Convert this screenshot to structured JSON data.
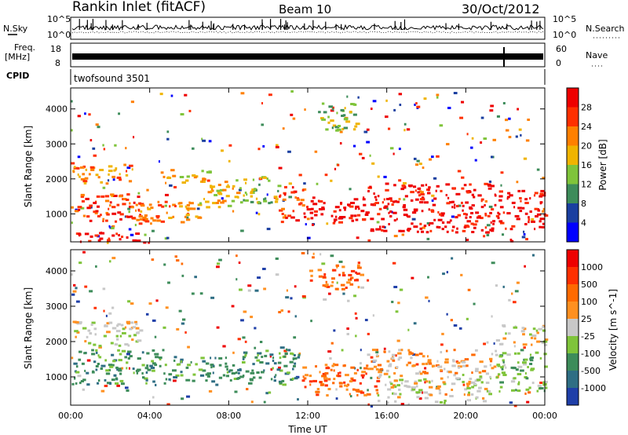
{
  "header": {
    "station_title": "Rankin Inlet (fitACF)",
    "beam": "Beam 10",
    "date": "30/Oct/2012"
  },
  "noise_panel": {
    "left_label": "N.Sky",
    "right_label": "N.Search",
    "tick_top": "10^5",
    "tick_bottom": "10^0",
    "colors": {
      "sky": "#000000",
      "search": "#000000"
    }
  },
  "freq_panel": {
    "left_label_1": "Freq.",
    "left_label_2": "[MHz]",
    "right_label": "Nave",
    "left_tick_top": "18",
    "left_tick_bottom": "8",
    "right_tick_top": "60",
    "right_tick_bottom": "0"
  },
  "cpid_panel": {
    "label": "CPID",
    "program": "twofsound 3501"
  },
  "chart_data": [
    {
      "type": "heatmap",
      "panel": "power",
      "ylabel": "Slant Range [km]",
      "xlabel": "",
      "xlim": [
        0,
        24
      ],
      "ylim": [
        200,
        4600
      ],
      "x_ticks": [
        "00:00",
        "04:00",
        "08:00",
        "12:00",
        "16:00",
        "20:00",
        "00:00"
      ],
      "y_ticks": [
        1000,
        2000,
        3000,
        4000
      ],
      "colorbar": {
        "label": "Power [dB]",
        "ticks": [
          "4",
          "8",
          "12",
          "16",
          "20",
          "24",
          "28"
        ],
        "colors": [
          "#0000ff",
          "#1a3fa0",
          "#3d8c5a",
          "#7fc43a",
          "#f0b400",
          "#ff8000",
          "#ff3000",
          "#ee0000"
        ]
      },
      "regions": [
        {
          "t0": 0.0,
          "t1": 3.5,
          "r0": 800,
          "r1": 1600,
          "level": 6
        },
        {
          "t0": 0.0,
          "t1": 3.0,
          "r0": 1900,
          "r1": 2500,
          "level": 5
        },
        {
          "t0": 3.0,
          "t1": 6.5,
          "r0": 700,
          "r1": 1400,
          "level": 5
        },
        {
          "t0": 4.5,
          "t1": 7.0,
          "r0": 1900,
          "r1": 2300,
          "level": 4
        },
        {
          "t0": 6.5,
          "t1": 8.5,
          "r0": 1200,
          "r1": 2000,
          "level": 4
        },
        {
          "t0": 8.5,
          "t1": 10.5,
          "r0": 1300,
          "r1": 2100,
          "level": 3
        },
        {
          "t0": 10.5,
          "t1": 12.0,
          "r0": 800,
          "r1": 1800,
          "level": 6
        },
        {
          "t0": 12.0,
          "t1": 15.0,
          "r0": 700,
          "r1": 1500,
          "level": 7
        },
        {
          "t0": 15.0,
          "t1": 21.5,
          "r0": 500,
          "r1": 1900,
          "level": 7
        },
        {
          "t0": 21.5,
          "t1": 24.0,
          "r0": 600,
          "r1": 1700,
          "level": 7
        },
        {
          "t0": 12.5,
          "t1": 14.5,
          "r0": 3400,
          "r1": 4200,
          "level": 3
        },
        {
          "t0": 0.0,
          "t1": 4.0,
          "r0": 200,
          "r1": 500,
          "level": 7
        }
      ]
    },
    {
      "type": "heatmap",
      "panel": "velocity",
      "ylabel": "Slant Range [km]",
      "xlabel": "Time UT",
      "xlim": [
        0,
        24
      ],
      "ylim": [
        200,
        4600
      ],
      "x_ticks": [
        "00:00",
        "04:00",
        "08:00",
        "12:00",
        "16:00",
        "20:00",
        "00:00"
      ],
      "y_ticks": [
        1000,
        2000,
        3000,
        4000
      ],
      "colorbar": {
        "label": "Velocity [m s^-1]",
        "ticks": [
          "1000",
          "500",
          "100",
          "25",
          "-25",
          "-100",
          "-500",
          "-1000"
        ],
        "colors": [
          "#1f3fa8",
          "#2f6e84",
          "#3d8c5a",
          "#7fc43a",
          "#c8c8c8",
          "#ff9020",
          "#ff6a00",
          "#ff3000",
          "#ee0000"
        ]
      },
      "regions": [
        {
          "t0": 0.0,
          "t1": 4.5,
          "r0": 800,
          "r1": 1800,
          "level": 2
        },
        {
          "t0": 0.0,
          "t1": 3.5,
          "r0": 1900,
          "r1": 2600,
          "level": 4
        },
        {
          "t0": 4.5,
          "t1": 8.5,
          "r0": 900,
          "r1": 1600,
          "level": 2
        },
        {
          "t0": 8.5,
          "t1": 11.5,
          "r0": 800,
          "r1": 1900,
          "level": 2
        },
        {
          "t0": 11.5,
          "t1": 15.5,
          "r0": 500,
          "r1": 1400,
          "level": 6
        },
        {
          "t0": 15.5,
          "t1": 21.5,
          "r0": 300,
          "r1": 1100,
          "level": 4
        },
        {
          "t0": 15.0,
          "t1": 21.5,
          "r0": 1100,
          "r1": 1800,
          "level": 5
        },
        {
          "t0": 21.5,
          "t1": 24.0,
          "r0": 600,
          "r1": 1800,
          "level": 3
        },
        {
          "t0": 12.5,
          "t1": 15.0,
          "r0": 3500,
          "r1": 4200,
          "level": 6
        },
        {
          "t0": 21.5,
          "t1": 24.0,
          "r0": 1900,
          "r1": 2500,
          "level": 4
        }
      ]
    }
  ]
}
